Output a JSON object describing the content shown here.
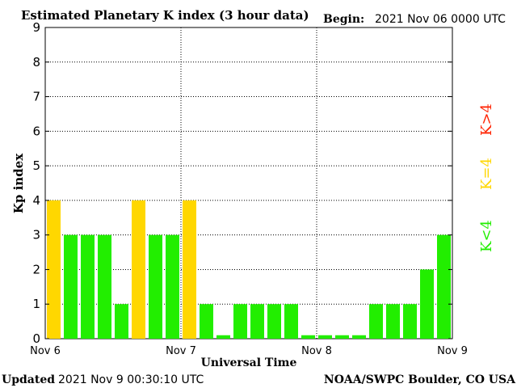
{
  "header": {
    "title": "Estimated Planetary K index (3 hour data)",
    "begin_label": "Begin:",
    "begin_value": "2021 Nov 06 0000 UTC"
  },
  "footer": {
    "updated_label": "Updated",
    "updated_value": "2021 Nov  9 00:30:10 UTC",
    "credit": "NOAA/SWPC Boulder, CO USA"
  },
  "legend": [
    {
      "label": "K>4",
      "color": "#ff2200"
    },
    {
      "label": "K=4",
      "color": "#ffd700"
    },
    {
      "label": "K<4",
      "color": "#22ee00"
    }
  ],
  "chart_data": {
    "type": "bar",
    "title": "Estimated Planetary K index (3 hour data)",
    "xlabel": "Universal Time",
    "ylabel": "Kp index",
    "ylim": [
      0,
      9
    ],
    "yticks": [
      "0",
      "1",
      "2",
      "3",
      "4",
      "5",
      "6",
      "7",
      "8",
      "9"
    ],
    "xticks": [
      "Nov 6",
      "Nov 7",
      "Nov 8",
      "Nov 9"
    ],
    "grid": true,
    "colors": {
      "low": "#22ee00",
      "equal": "#ffd700",
      "high": "#ff2200"
    },
    "categories": [
      "Nov 6 00-03",
      "Nov 6 03-06",
      "Nov 6 06-09",
      "Nov 6 09-12",
      "Nov 6 12-15",
      "Nov 6 15-18",
      "Nov 6 18-21",
      "Nov 6 21-24",
      "Nov 7 00-03",
      "Nov 7 03-06",
      "Nov 7 06-09",
      "Nov 7 09-12",
      "Nov 7 12-15",
      "Nov 7 15-18",
      "Nov 7 18-21",
      "Nov 7 21-24",
      "Nov 8 00-03",
      "Nov 8 03-06",
      "Nov 8 06-09",
      "Nov 8 09-12",
      "Nov 8 12-15",
      "Nov 8 15-18",
      "Nov 8 18-21",
      "Nov 8 21-24"
    ],
    "values": [
      4,
      3,
      3,
      3,
      1,
      4,
      3,
      3,
      4,
      1,
      0.1,
      1,
      1,
      1,
      1,
      0.1,
      0.1,
      0.1,
      0.1,
      1,
      1,
      1,
      2,
      3
    ]
  }
}
